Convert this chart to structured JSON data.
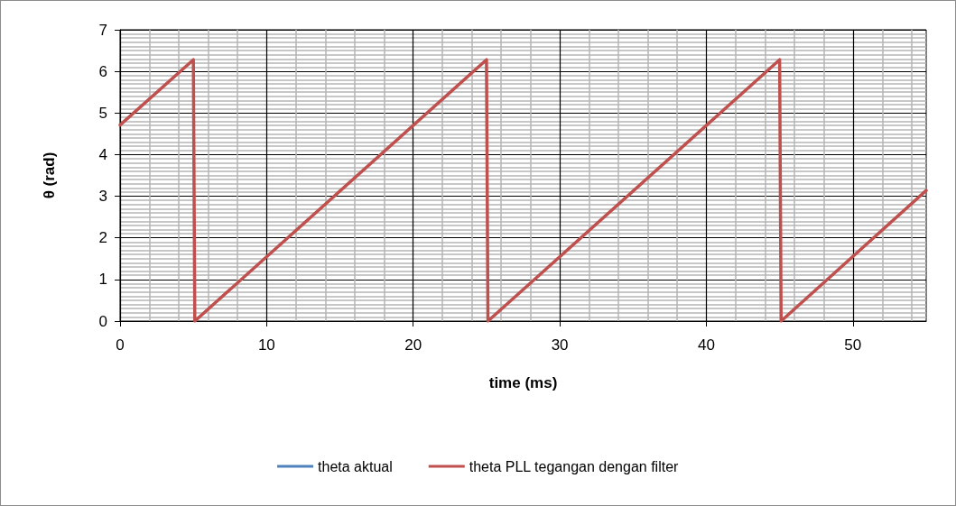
{
  "chart_data": {
    "type": "line",
    "xlabel": "time (ms)",
    "ylabel": "θ (rad)",
    "x": [
      0,
      5,
      5.1,
      25,
      25.1,
      45,
      45.1,
      55
    ],
    "series": [
      {
        "name": "theta aktual",
        "color": "#4f81bd",
        "values": [
          null,
          null,
          null,
          null,
          null,
          null,
          null,
          null
        ]
      },
      {
        "name": "theta PLL tegangan dengan filter",
        "color": "#c0504d",
        "values": [
          4.71,
          6.28,
          0,
          6.28,
          0,
          6.28,
          0,
          3.14
        ]
      }
    ],
    "xlim": [
      0,
      55
    ],
    "xticks": [
      0,
      10,
      20,
      30,
      40,
      50
    ],
    "ylim": [
      0,
      7
    ],
    "yticks": [
      0,
      1,
      2,
      3,
      4,
      5,
      6,
      7
    ],
    "grid": true,
    "legend": "bottom",
    "marker": "none",
    "line_style": "solid"
  }
}
